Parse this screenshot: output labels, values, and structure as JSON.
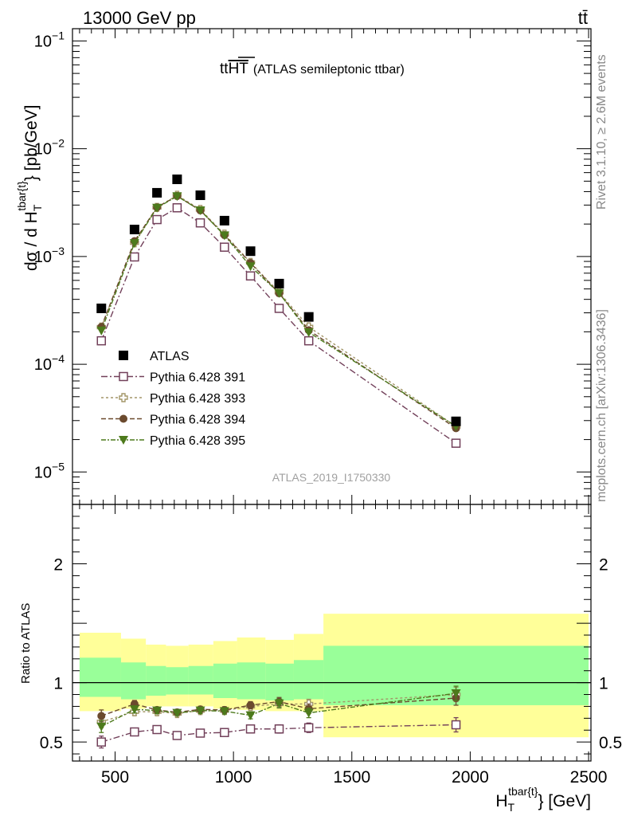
{
  "header": {
    "left_label": "13000 GeV pp",
    "right_label": "tt̄"
  },
  "side_labels": {
    "rivet": "Rivet 3.1.10, ≥ 2.6M events",
    "mcplots": "mcplots.cern.ch [arXiv:1306.3436]"
  },
  "plot_title": {
    "main": "tt",
    "over": "HT",
    "sub": "(ATLAS semileptonic ttbar)"
  },
  "watermark": "ATLAS_2019_I1750330",
  "axes": {
    "y_top": {
      "prefix": "dσ / d H",
      "sub": "T",
      "sup": "tbar{t}",
      "suffix": "} [pb/GeV]"
    },
    "y_bottom": "Ratio to ATLAS",
    "x": {
      "prefix": "H",
      "sub": "T",
      "sup": "tbar{t}",
      "suffix": "} [GeV]"
    }
  },
  "chart_data": [
    {
      "type": "scatter",
      "panel": "main",
      "yscale": "log",
      "xlim": [
        320,
        2510
      ],
      "ylim": [
        5e-06,
        0.13
      ],
      "x_ticks": [
        500,
        1000,
        1500,
        2000,
        2500
      ],
      "y_tick_labels": [
        "10^-5",
        "10^-4",
        "10^-3",
        "10^-2",
        "10^-1"
      ],
      "legend_position": "lower-left",
      "x": [
        442,
        582,
        677,
        762,
        860,
        962,
        1072,
        1193,
        1318,
        1940
      ],
      "series": [
        {
          "name": "ATLAS",
          "color": "#000000",
          "marker": "square-filled",
          "values": [
            0.00033,
            0.00178,
            0.0039,
            0.0052,
            0.0037,
            0.00215,
            0.00112,
            0.00056,
            0.000275,
            2.95e-05
          ]
        },
        {
          "name": "Pythia 6.428 391",
          "color": "#72405a",
          "marker": "square-open",
          "dash": "8 3 2 3",
          "values": [
            0.000165,
            0.00099,
            0.0022,
            0.00283,
            0.00205,
            0.00122,
            0.00066,
            0.00033,
            0.000165,
            1.85e-05
          ]
        },
        {
          "name": "Pythia 6.428 393",
          "color": "#a39668",
          "marker": "cross-open",
          "dash": "3 3",
          "values": [
            0.000221,
            0.00134,
            0.00285,
            0.0037,
            0.00273,
            0.00161,
            0.00088,
            0.000465,
            0.000222,
            2.65e-05
          ]
        },
        {
          "name": "Pythia 6.428 394",
          "color": "#6b4a2e",
          "marker": "circle-filled",
          "dash": "6 3",
          "values": [
            0.000222,
            0.00139,
            0.00286,
            0.00365,
            0.00268,
            0.00158,
            0.00087,
            0.000455,
            0.000207,
            2.55e-05
          ]
        },
        {
          "name": "Pythia 6.428 395",
          "color": "#4d7a1c",
          "marker": "triangle-down-filled",
          "dash": "6 2 2 2",
          "values": [
            0.000205,
            0.00133,
            0.00283,
            0.00362,
            0.00268,
            0.00157,
            0.00081,
            0.000458,
            0.000198,
            2.65e-05
          ]
        }
      ]
    },
    {
      "type": "scatter",
      "panel": "ratio",
      "ylabel": "Ratio to ATLAS",
      "xlim": [
        320,
        2510
      ],
      "ylim": [
        0.34,
        2.5
      ],
      "y_ticks": [
        0.5,
        1,
        2
      ],
      "bins": [
        350,
        525,
        630,
        715,
        810,
        915,
        1015,
        1135,
        1255,
        1380,
        2500
      ],
      "uncertainty_inner": {
        "color": "#99ff99",
        "lower": [
          0.88,
          0.86,
          0.89,
          0.9,
          0.9,
          0.87,
          0.86,
          0.85,
          0.86,
          0.81
        ],
        "upper": [
          1.21,
          1.17,
          1.14,
          1.13,
          1.14,
          1.16,
          1.17,
          1.16,
          1.19,
          1.31
        ]
      },
      "uncertainty_outer": {
        "color": "#ffff99",
        "lower": [
          0.76,
          0.78,
          0.8,
          0.8,
          0.8,
          0.78,
          0.77,
          0.76,
          0.76,
          0.54
        ],
        "upper": [
          1.42,
          1.37,
          1.32,
          1.31,
          1.32,
          1.35,
          1.38,
          1.36,
          1.41,
          1.58
        ]
      },
      "x": [
        442,
        582,
        677,
        762,
        860,
        962,
        1072,
        1193,
        1318,
        1940
      ],
      "series": [
        {
          "name": "Pythia 6.428 391",
          "color": "#72405a",
          "marker": "square-open",
          "dash": "8 3 2 3",
          "values": [
            0.5,
            0.585,
            0.605,
            0.555,
            0.575,
            0.58,
            0.61,
            0.61,
            0.62,
            0.645
          ],
          "errors": [
            0.05,
            0.03,
            0.025,
            0.02,
            0.025,
            0.025,
            0.03,
            0.035,
            0.04,
            0.06
          ]
        },
        {
          "name": "Pythia 6.428 393",
          "color": "#a39668",
          "marker": "cross-open",
          "dash": "3 3",
          "values": [
            0.67,
            0.755,
            0.755,
            0.74,
            0.765,
            0.765,
            0.8,
            0.82,
            0.82,
            0.9
          ],
          "errors": [
            0.05,
            0.03,
            0.025,
            0.02,
            0.025,
            0.025,
            0.03,
            0.035,
            0.04,
            0.06
          ]
        },
        {
          "name": "Pythia 6.428 394",
          "color": "#6b4a2e",
          "marker": "circle-filled",
          "dash": "6 3",
          "values": [
            0.72,
            0.82,
            0.77,
            0.75,
            0.775,
            0.77,
            0.81,
            0.84,
            0.78,
            0.87
          ],
          "errors": [
            0.05,
            0.03,
            0.025,
            0.02,
            0.025,
            0.025,
            0.03,
            0.035,
            0.04,
            0.06
          ]
        },
        {
          "name": "Pythia 6.428 395",
          "color": "#4d7a1c",
          "marker": "triangle-down-filled",
          "dash": "6 2 2 2",
          "values": [
            0.63,
            0.775,
            0.765,
            0.745,
            0.765,
            0.76,
            0.725,
            0.825,
            0.745,
            0.91
          ],
          "errors": [
            0.05,
            0.03,
            0.025,
            0.02,
            0.025,
            0.025,
            0.03,
            0.035,
            0.04,
            0.06
          ]
        }
      ]
    }
  ]
}
